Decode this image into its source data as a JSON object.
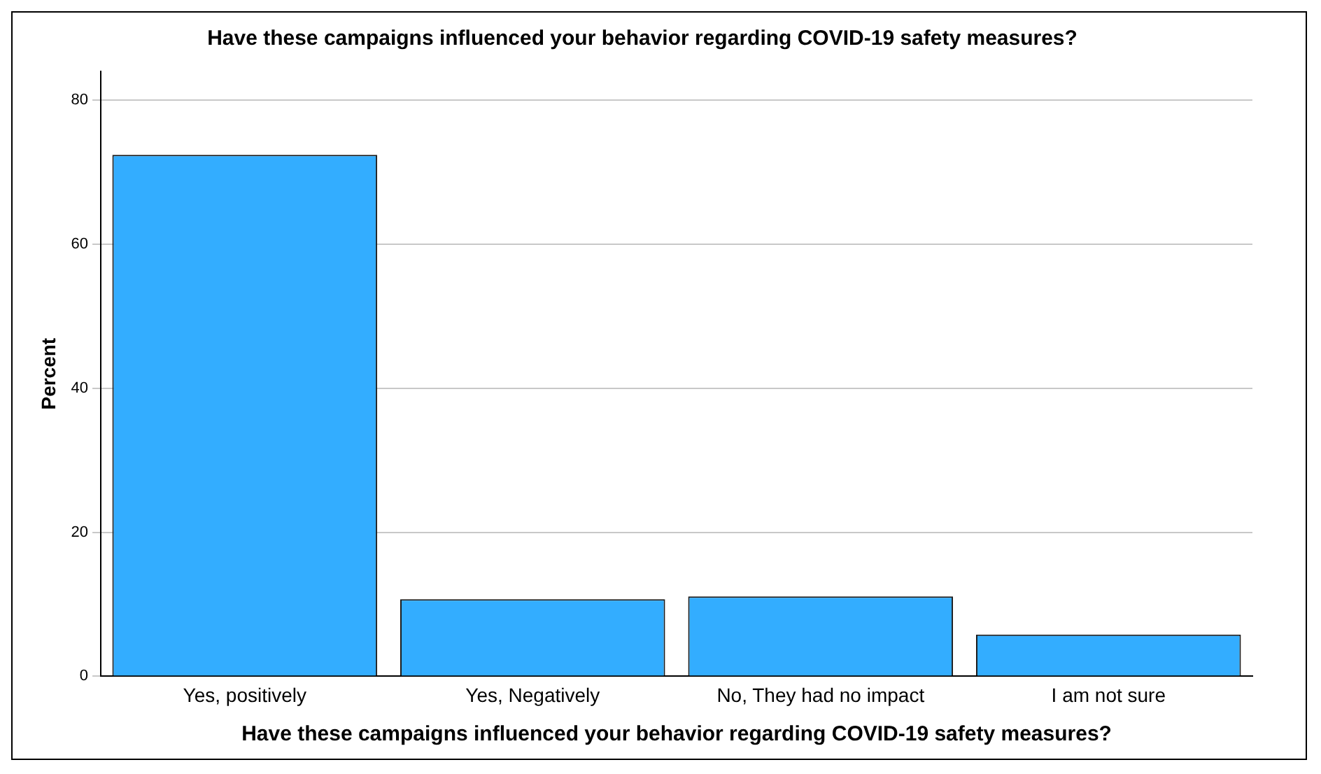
{
  "chart_data": {
    "type": "bar",
    "title": "Have these campaigns influenced your behavior regarding COVID-19 safety measures?",
    "xlabel": "Have these campaigns influenced your behavior regarding COVID-19 safety measures?",
    "ylabel": "Percent",
    "categories": [
      "Yes, positively",
      "Yes, Negatively",
      "No, They had no impact",
      "I am not sure"
    ],
    "values": [
      72.4,
      10.7,
      11.1,
      5.8
    ],
    "color": "#33adff",
    "ylim": [
      0,
      84
    ],
    "yticks": [
      0,
      20,
      40,
      60,
      80
    ],
    "grid": "y"
  }
}
